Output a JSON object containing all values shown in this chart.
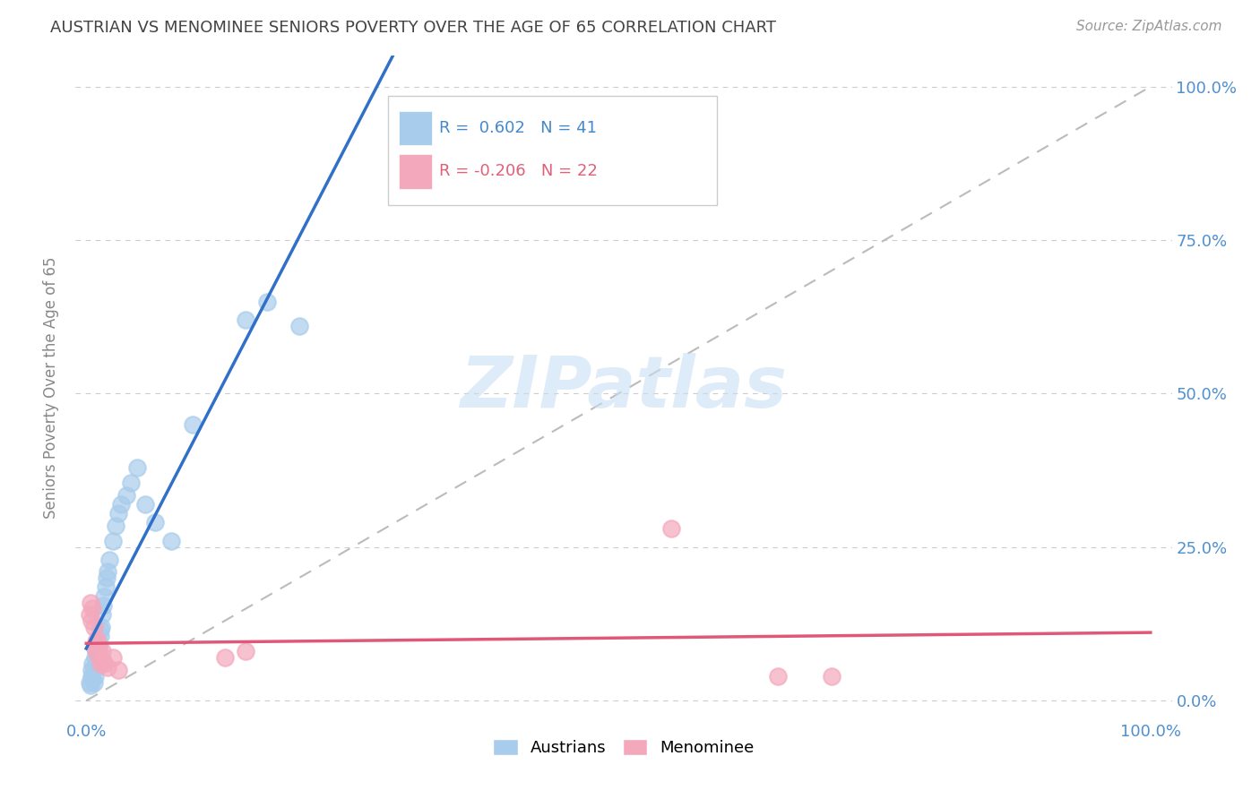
{
  "title": "AUSTRIAN VS MENOMINEE SENIORS POVERTY OVER THE AGE OF 65 CORRELATION CHART",
  "source": "Source: ZipAtlas.com",
  "ylabel": "Seniors Poverty Over the Age of 65",
  "x_tick_labels": [
    "0.0%",
    "100.0%"
  ],
  "y_tick_labels": [
    "0.0%",
    "25.0%",
    "50.0%",
    "75.0%",
    "100.0%"
  ],
  "y_tick_positions": [
    0.0,
    0.25,
    0.5,
    0.75,
    1.0
  ],
  "watermark": "ZIPatlas",
  "austrians_color": "#A8CCEC",
  "menominee_color": "#F4A8BC",
  "line_blue": "#3070C8",
  "line_pink": "#E05878",
  "diagonal_color": "#BBBBBB",
  "grid_color": "#CCCCCC",
  "austrians_x": [
    0.003,
    0.004,
    0.005,
    0.005,
    0.006,
    0.006,
    0.007,
    0.007,
    0.008,
    0.008,
    0.009,
    0.009,
    0.01,
    0.01,
    0.011,
    0.011,
    0.012,
    0.013,
    0.013,
    0.014,
    0.015,
    0.016,
    0.017,
    0.018,
    0.019,
    0.02,
    0.022,
    0.025,
    0.028,
    0.03,
    0.033,
    0.038,
    0.042,
    0.048,
    0.055,
    0.065,
    0.08,
    0.1,
    0.15,
    0.2,
    0.17
  ],
  "austrians_y": [
    0.03,
    0.025,
    0.04,
    0.05,
    0.035,
    0.06,
    0.03,
    0.055,
    0.04,
    0.07,
    0.055,
    0.08,
    0.06,
    0.09,
    0.075,
    0.1,
    0.085,
    0.105,
    0.115,
    0.12,
    0.14,
    0.155,
    0.17,
    0.185,
    0.2,
    0.21,
    0.23,
    0.26,
    0.285,
    0.305,
    0.32,
    0.335,
    0.355,
    0.38,
    0.32,
    0.29,
    0.26,
    0.45,
    0.62,
    0.61,
    0.65
  ],
  "menominee_x": [
    0.003,
    0.004,
    0.005,
    0.006,
    0.007,
    0.008,
    0.009,
    0.01,
    0.011,
    0.012,
    0.013,
    0.015,
    0.016,
    0.017,
    0.02,
    0.025,
    0.03,
    0.13,
    0.15,
    0.55,
    0.65,
    0.7
  ],
  "menominee_y": [
    0.14,
    0.16,
    0.13,
    0.15,
    0.12,
    0.085,
    0.095,
    0.1,
    0.075,
    0.09,
    0.06,
    0.08,
    0.065,
    0.06,
    0.055,
    0.07,
    0.05,
    0.07,
    0.08,
    0.28,
    0.04,
    0.04
  ]
}
